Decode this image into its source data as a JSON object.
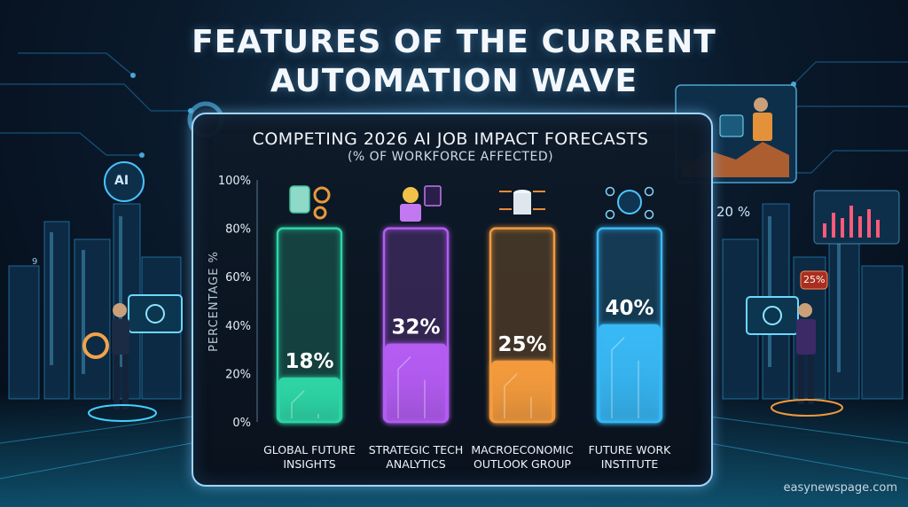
{
  "page": {
    "title_line1": "FEATURES OF THE CURRENT",
    "title_line2": "AUTOMATION WAVE",
    "watermark": "easynewspage.com"
  },
  "decor": {
    "left_ai_badge": "AI",
    "left_small_number": "9",
    "right_percent": "20 %",
    "right_callout": "25%"
  },
  "colors": {
    "bar1": "#2dd4a5",
    "bar2": "#b45cf2",
    "bar3": "#f39a3c",
    "bar4": "#38b8f5",
    "panel_border": "#9fd6ff"
  },
  "icons": [
    "robot-hand-gears-icon",
    "worker-dashboard-icon",
    "database-network-icon",
    "ai-people-network-icon"
  ],
  "chart_data": {
    "type": "bar",
    "title": "COMPETING 2026 AI JOB IMPACT FORECASTS",
    "subtitle": "(% OF WORKFORCE AFFECTED)",
    "xlabel": "",
    "ylabel": "PERCENTAGE %",
    "ylim": [
      0,
      100
    ],
    "yticks": [
      "0%",
      "20%",
      "40%",
      "60%",
      "80%",
      "100%"
    ],
    "categories": [
      [
        "GLOBAL FUTURE",
        "INSIGHTS"
      ],
      [
        "STRATEGIC TECH",
        "ANALYTICS"
      ],
      [
        "MACROECONOMIC",
        "OUTLOOK GROUP"
      ],
      [
        "FUTURE WORK",
        "INSTITUTE"
      ]
    ],
    "values": [
      18,
      32,
      25,
      40
    ],
    "data_labels": [
      "18%",
      "32%",
      "25%",
      "40%"
    ],
    "grid": false,
    "legend": "none"
  }
}
